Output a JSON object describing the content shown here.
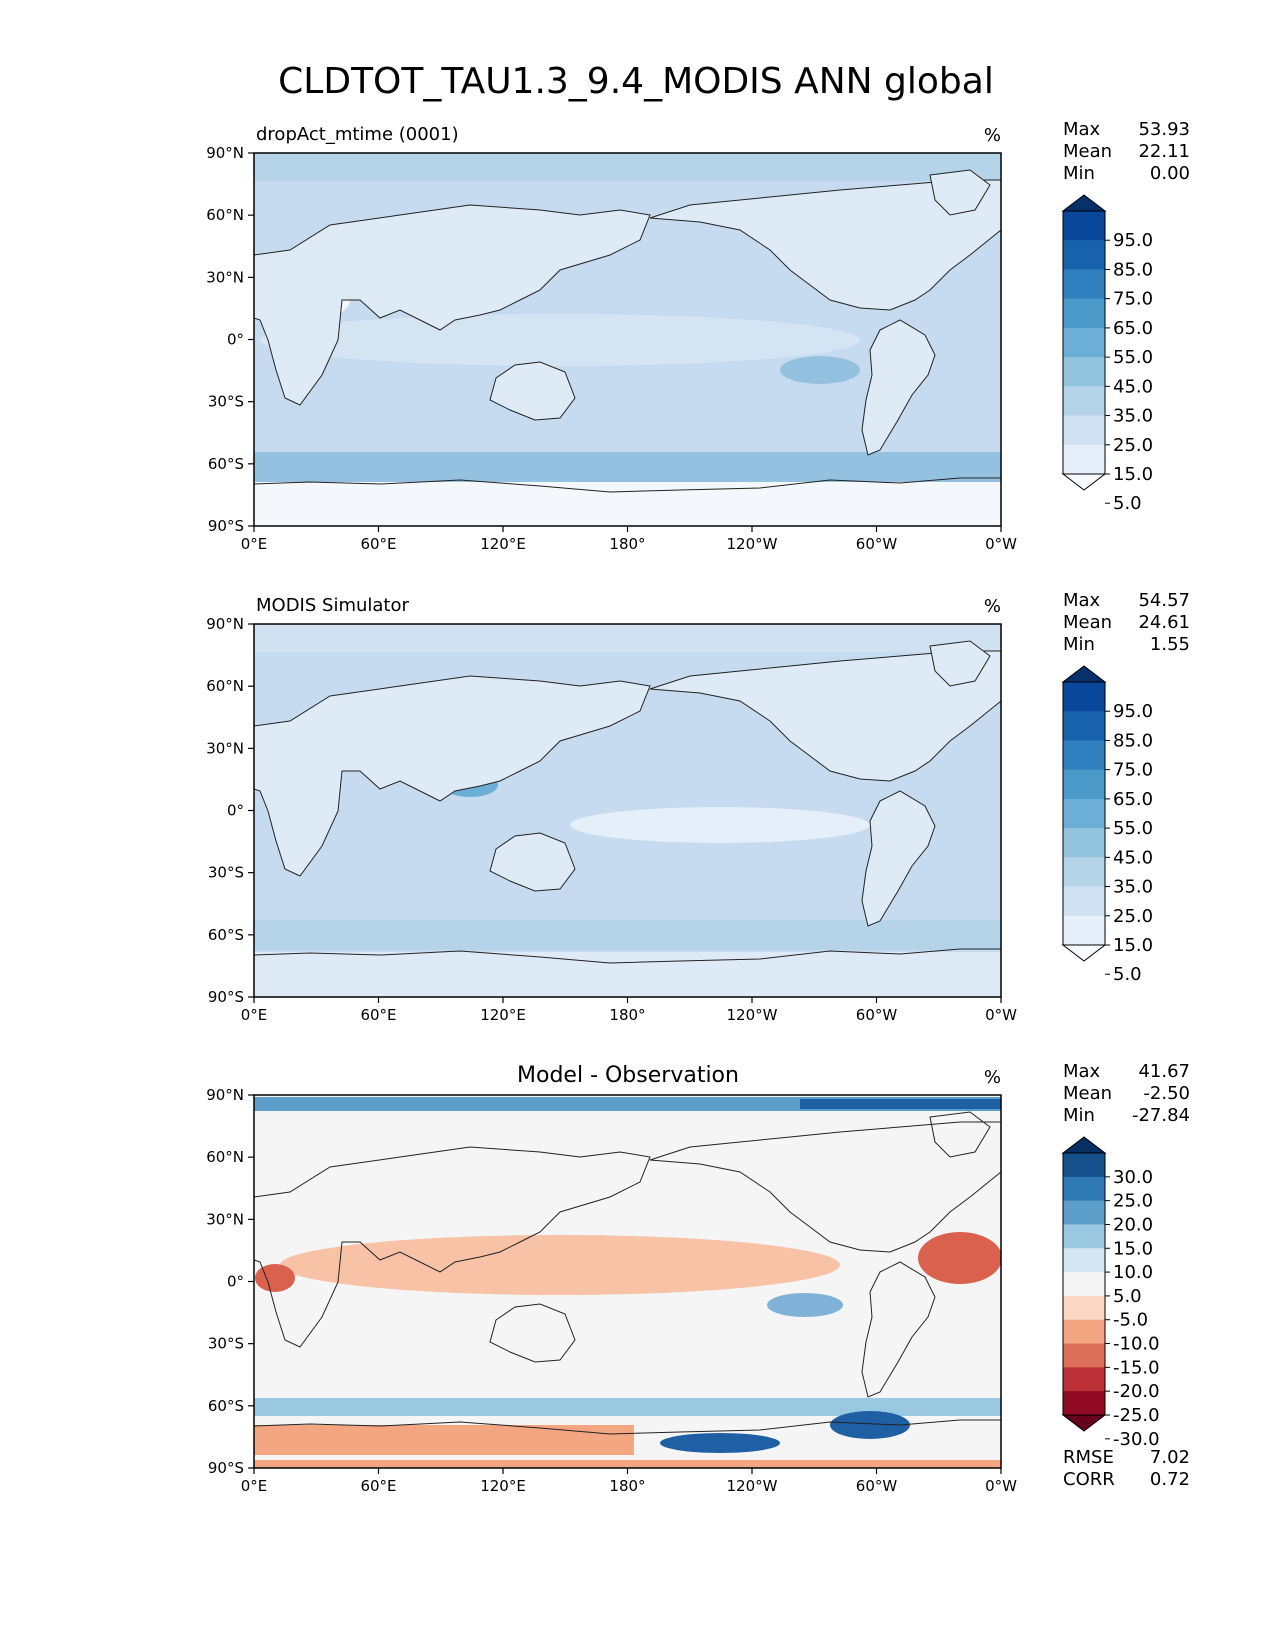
{
  "figure": {
    "title": "CLDTOT_TAU1.3_9.4_MODIS ANN global"
  },
  "x_ticks": [
    "0°E",
    "60°E",
    "120°E",
    "180°",
    "120°W",
    "60°W",
    "0°W"
  ],
  "y_ticks": [
    "90°N",
    "60°N",
    "30°N",
    "0°",
    "30°S",
    "60°S",
    "90°S"
  ],
  "chart_data": [
    {
      "type": "heatmap",
      "title": "dropAct_mtime (0001)",
      "units": "%",
      "stats": {
        "max_label": "Max",
        "max": "53.93",
        "mean_label": "Mean",
        "mean": "22.11",
        "min_label": "Min",
        "min": "0.00"
      },
      "colorbar": {
        "ticks": [
          "95.0",
          "85.0",
          "75.0",
          "65.0",
          "55.0",
          "45.0",
          "35.0",
          "25.0",
          "15.0",
          "5.0"
        ],
        "colors": [
          "#08306b",
          "#08479a",
          "#1862ab",
          "#3080bf",
          "#4a99c9",
          "#6baed6",
          "#93c4de",
          "#b5d4e9",
          "#d0e1f2",
          "#e4eff9",
          "#f7fbff"
        ]
      }
    },
    {
      "type": "heatmap",
      "title": "MODIS Simulator",
      "units": "%",
      "stats": {
        "max_label": "Max",
        "max": "54.57",
        "mean_label": "Mean",
        "mean": "24.61",
        "min_label": "Min",
        "min": "1.55"
      },
      "colorbar": {
        "ticks": [
          "95.0",
          "85.0",
          "75.0",
          "65.0",
          "55.0",
          "45.0",
          "35.0",
          "25.0",
          "15.0",
          "5.0"
        ],
        "colors": [
          "#08306b",
          "#08479a",
          "#1862ab",
          "#3080bf",
          "#4a99c9",
          "#6baed6",
          "#93c4de",
          "#b5d4e9",
          "#d0e1f2",
          "#e4eff9",
          "#f7fbff"
        ]
      }
    },
    {
      "type": "heatmap",
      "title": "Model - Observation",
      "units": "%",
      "stats": {
        "max_label": "Max",
        "max": "41.67",
        "mean_label": "Mean",
        "mean": "-2.50",
        "min_label": "Min",
        "min": "-27.84"
      },
      "metrics": {
        "rmse_label": "RMSE",
        "rmse": "7.02",
        "corr_label": "CORR",
        "corr": "0.72"
      },
      "colorbar": {
        "ticks": [
          "30.0",
          "25.0",
          "20.0",
          "15.0",
          "10.0",
          "5.0",
          "-5.0",
          "-10.0",
          "-15.0",
          "-20.0",
          "-25.0",
          "-30.0"
        ],
        "colors": [
          "#053061",
          "#154f8c",
          "#2f79b5",
          "#5b9ec9",
          "#9ac8e0",
          "#d4e6f1",
          "#f4f4f4",
          "#fbd8c4",
          "#f4a683",
          "#dc6f58",
          "#bc2f36",
          "#900a24",
          "#67001f"
        ]
      }
    }
  ],
  "colors": {
    "ocean_light": "#c6dbef",
    "land_light": "#deebf7",
    "storm_track": "#94c1df",
    "polar_low": "#f4f8fc",
    "diff_neutral": "#f5f5f5",
    "diff_pos": "#7fb2d6",
    "diff_neg": "#f7c2a6",
    "diff_strong_pos": "#1f5fa3",
    "diff_strong_neg": "#d9614e",
    "coast": "#222222"
  }
}
